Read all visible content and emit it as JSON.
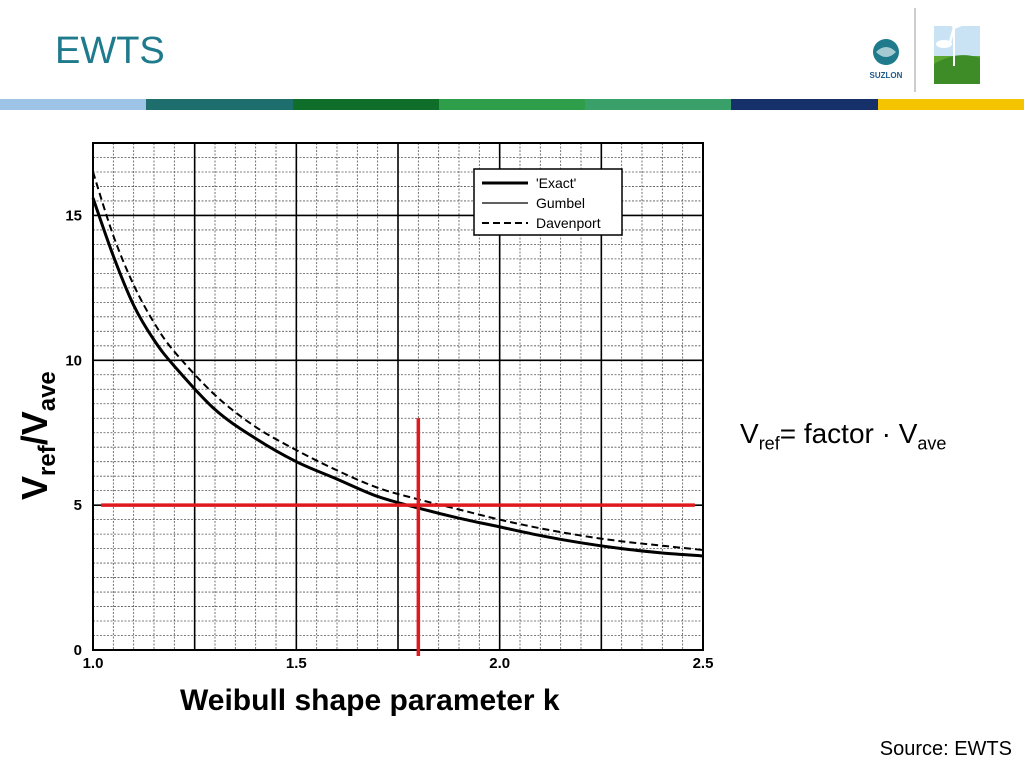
{
  "slide": {
    "title": "EWTS",
    "source": "Source: EWTS",
    "logo_text": "SUZLON",
    "band_colors": [
      "#9dc3e6",
      "#1f6e6e",
      "#0e6e2a",
      "#2e9e4a",
      "#3aa06a",
      "#16306a",
      "#f5c400"
    ]
  },
  "formula": {
    "lhs_main": "V",
    "lhs_sub": "ref",
    "middle": "= factor · V",
    "rhs_sub": "ave"
  },
  "axis_labels": {
    "y_main": "V",
    "y_sub1": "ref",
    "y_slash": "/V",
    "y_sub2": "ave",
    "x": "Weibull shape parameter k"
  },
  "chart_data": {
    "type": "line",
    "xlim": [
      1.0,
      2.5
    ],
    "ylim": [
      0,
      17.5
    ],
    "x_ticks": [
      "1.0",
      "1.5",
      "2.0",
      "2.5"
    ],
    "y_ticks": [
      "0",
      "5",
      "10",
      "15"
    ],
    "grid": true,
    "legend_position": "top-right",
    "series": [
      {
        "name": "'Exact'",
        "style": "solid-thick",
        "x": [
          1.0,
          1.05,
          1.1,
          1.15,
          1.2,
          1.3,
          1.4,
          1.5,
          1.6,
          1.7,
          1.8,
          1.9,
          2.0,
          2.1,
          2.2,
          2.3,
          2.4,
          2.5
        ],
        "y": [
          15.6,
          13.6,
          11.9,
          10.7,
          9.8,
          8.3,
          7.3,
          6.5,
          5.9,
          5.3,
          4.9,
          4.55,
          4.25,
          3.95,
          3.7,
          3.5,
          3.35,
          3.25
        ]
      },
      {
        "name": "Gumbel",
        "style": "solid-thin",
        "x": [
          1.0,
          1.05,
          1.1,
          1.15,
          1.2,
          1.3,
          1.4,
          1.5,
          1.6,
          1.7,
          1.8,
          1.9,
          2.0,
          2.1,
          2.2,
          2.3,
          2.4,
          2.5
        ],
        "y": [
          15.6,
          13.6,
          11.9,
          10.7,
          9.8,
          8.3,
          7.3,
          6.5,
          5.9,
          5.3,
          4.9,
          4.55,
          4.25,
          3.95,
          3.7,
          3.5,
          3.35,
          3.25
        ]
      },
      {
        "name": "Davenport",
        "style": "dashed",
        "x": [
          1.0,
          1.05,
          1.1,
          1.15,
          1.2,
          1.3,
          1.4,
          1.5,
          1.6,
          1.7,
          1.8,
          1.9,
          2.0,
          2.1,
          2.2,
          2.3,
          2.4,
          2.5
        ],
        "y": [
          16.5,
          14.3,
          12.6,
          11.3,
          10.3,
          8.8,
          7.7,
          6.9,
          6.2,
          5.6,
          5.2,
          4.85,
          4.5,
          4.2,
          3.95,
          3.75,
          3.6,
          3.45
        ]
      }
    ],
    "annotation": {
      "type": "crosshair",
      "color": "#e0191e",
      "x": 1.8,
      "y": 5.0,
      "h_line_x": [
        1.02,
        2.48
      ],
      "v_line_y": [
        0,
        8.0
      ]
    }
  }
}
